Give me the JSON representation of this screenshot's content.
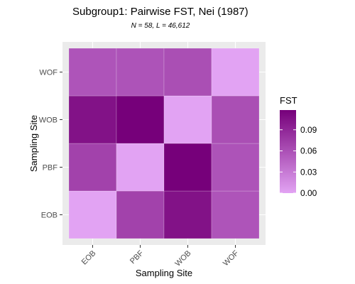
{
  "chart_data": {
    "type": "heatmap",
    "title": "Subgroup1: Pairwise FST, Nei (1987)",
    "subtitle": "N = 58, L = 46,612",
    "xlabel": "Sampling Site",
    "ylabel": "Sampling Site",
    "x_categories": [
      "EOB",
      "PBF",
      "WOB",
      "WOF"
    ],
    "y_categories": [
      "EOB",
      "PBF",
      "WOB",
      "WOF"
    ],
    "values": [
      [
        0.0,
        0.07,
        0.105,
        0.057
      ],
      [
        0.07,
        0.0,
        0.118,
        0.058
      ],
      [
        0.105,
        0.118,
        0.0,
        0.061
      ],
      [
        0.057,
        0.058,
        0.061,
        0.0
      ]
    ],
    "legend": {
      "title": "FST",
      "ticks": [
        0.0,
        0.03,
        0.06,
        0.09
      ],
      "tick_labels": [
        "0.00",
        "0.03",
        "0.06",
        "0.09"
      ],
      "range": [
        0.0,
        0.118
      ],
      "placement": "right"
    },
    "colors": {
      "low": "#e2a3f3",
      "high": "#76007a",
      "panel_background": "#ebebeb",
      "grid": "#ffffff"
    },
    "grid": true
  }
}
